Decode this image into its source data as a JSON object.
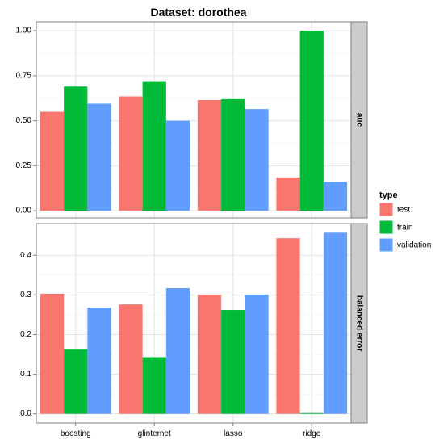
{
  "chart_data": {
    "type": "bar",
    "title": "Dataset: dorothea",
    "categories": [
      "boosting",
      "glinternet",
      "lasso",
      "ridge"
    ],
    "legend": {
      "title": "type",
      "position": "right",
      "entries": [
        "test",
        "train",
        "validation"
      ]
    },
    "colors": {
      "test": "#F8766D",
      "train": "#00BA38",
      "validation": "#619CFF"
    },
    "grid": true,
    "panels": [
      {
        "label": "auc",
        "ylim": [
          -0.04,
          1.05
        ],
        "yticks": [
          0.0,
          0.25,
          0.5,
          0.75,
          1.0
        ],
        "ytick_labels": [
          "0.00",
          "0.25",
          "0.50",
          "0.75",
          "1.00"
        ],
        "series": [
          {
            "name": "test",
            "values": [
              0.55,
              0.635,
              0.615,
              0.185
            ]
          },
          {
            "name": "train",
            "values": [
              0.69,
              0.72,
              0.62,
              1.0
            ]
          },
          {
            "name": "validation",
            "values": [
              0.595,
              0.5,
              0.565,
              0.16
            ]
          }
        ]
      },
      {
        "label": "balanced error",
        "ylim": [
          -0.023,
          0.48
        ],
        "yticks": [
          0.0,
          0.1,
          0.2,
          0.3,
          0.4
        ],
        "ytick_labels": [
          "0.0",
          "0.1",
          "0.2",
          "0.3",
          "0.4"
        ],
        "series": [
          {
            "name": "test",
            "values": [
              0.303,
              0.276,
              0.301,
              0.443
            ]
          },
          {
            "name": "train",
            "values": [
              0.164,
              0.143,
              0.262,
              0.002
            ]
          },
          {
            "name": "validation",
            "values": [
              0.268,
              0.317,
              0.301,
              0.457
            ]
          }
        ]
      }
    ]
  }
}
